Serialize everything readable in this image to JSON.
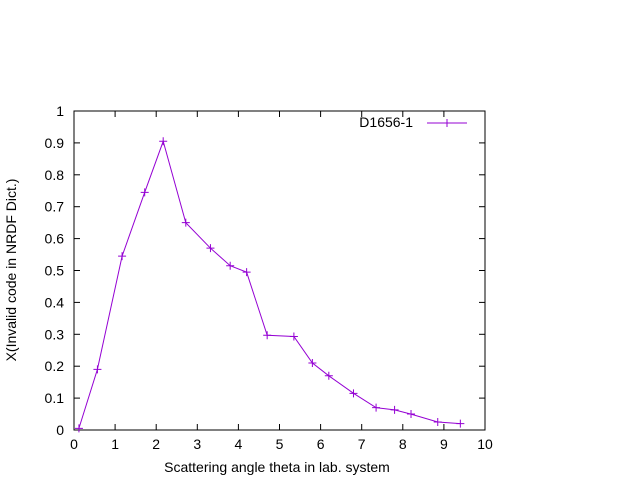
{
  "chart_data": {
    "type": "line",
    "xlabel": "Scattering angle theta in lab. system",
    "ylabel": "X(Invalid code in NRDF Dict.)",
    "xlim": [
      0,
      10
    ],
    "ylim": [
      0,
      1
    ],
    "x_ticks": [
      0,
      1,
      2,
      3,
      4,
      5,
      6,
      7,
      8,
      9,
      10
    ],
    "y_ticks": [
      0,
      0.1,
      0.2,
      0.3,
      0.4,
      0.5,
      0.6,
      0.7,
      0.8,
      0.9,
      1
    ],
    "x_tick_labels": [
      "0",
      "1",
      "2",
      "3",
      "4",
      "5",
      "6",
      "7",
      "8",
      "9",
      "10"
    ],
    "y_tick_labels": [
      "0",
      "0.1",
      "0.2",
      "0.3",
      "0.4",
      "0.5",
      "0.6",
      "0.7",
      "0.8",
      "0.9",
      "1"
    ],
    "grid": false,
    "legend_position": "top-right",
    "series": [
      {
        "name": "D1656-1",
        "color": "#9400d3",
        "marker": "plus",
        "x": [
          0.12,
          0.57,
          1.17,
          1.72,
          2.17,
          2.72,
          3.32,
          3.8,
          4.2,
          4.7,
          5.35,
          5.8,
          6.2,
          6.8,
          7.35,
          7.8,
          8.2,
          8.85,
          9.4
        ],
        "y": [
          0.005,
          0.19,
          0.545,
          0.745,
          0.905,
          0.65,
          0.57,
          0.515,
          0.495,
          0.297,
          0.293,
          0.21,
          0.17,
          0.115,
          0.07,
          0.063,
          0.05,
          0.025,
          0.02
        ]
      }
    ]
  }
}
